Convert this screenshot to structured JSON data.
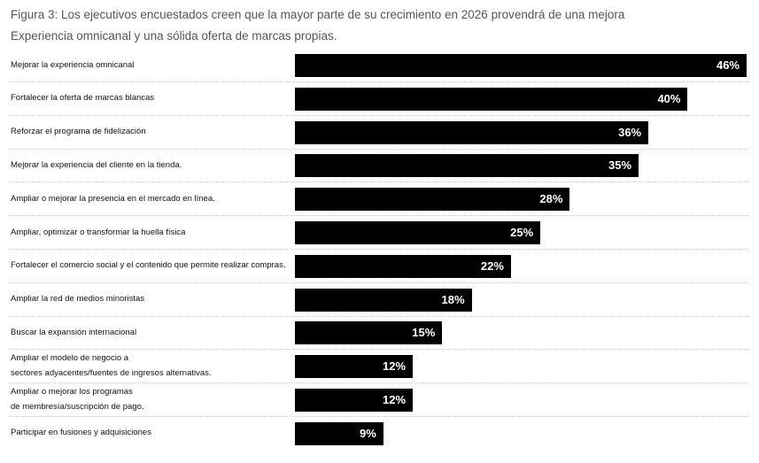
{
  "chart_data": {
    "type": "bar",
    "orientation": "horizontal",
    "title_line1": "Figura 3: Los ejecutivos encuestados creen que la mayor parte de su crecimiento en 2026 provendrá de una mejora",
    "title_line2": "Experiencia omnicanal y una sólida oferta de marcas propias.",
    "xlabel": "",
    "ylabel": "",
    "xlim": [
      0,
      46
    ],
    "grid": false,
    "bar_color": "#000000",
    "categories": [
      "Mejorar la experiencia omnicanal",
      "Fortalecer la oferta de marcas blancas",
      "Reforzar el programa de fidelización",
      "Mejorar la experiencia del cliente en la tienda.",
      "Ampliar o mejorar la presencia en el mercado en línea.",
      "Ampliar, optimizar o transformar la huella física",
      "Fortalecer el comercio social y el contenido que permite realizar compras.",
      "Ampliar la red de medios minoristas",
      "Buscar la expansión internacional",
      "Ampliar el modelo de negocio a\nsectores adyacentes/fuentes de ingresos alternativas.",
      "Ampliar o mejorar los programas\nde membresía/suscripción de pago.",
      "Participar en fusiones y adquisiciones"
    ],
    "values": [
      46,
      40,
      36,
      35,
      28,
      25,
      22,
      18,
      15,
      12,
      12,
      9
    ],
    "value_labels": [
      "46%",
      "40%",
      "36%",
      "35%",
      "28%",
      "25%",
      "22%",
      "18%",
      "15%",
      "12%",
      "12%",
      "9%"
    ]
  }
}
